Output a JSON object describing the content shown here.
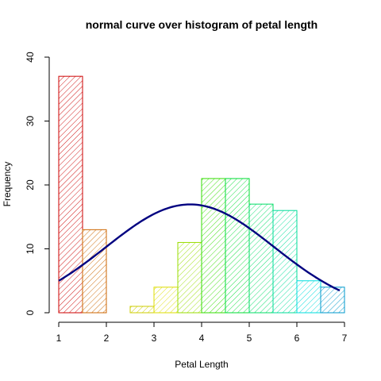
{
  "chart_data": {
    "type": "bar",
    "title": "normal curve over histogram of petal length",
    "xlabel": "Petal Length",
    "ylabel": "Frequency",
    "xlim": [
      1,
      7
    ],
    "ylim": [
      0,
      40
    ],
    "x_ticks": [
      1,
      2,
      3,
      4,
      5,
      6,
      7
    ],
    "y_ticks": [
      0,
      10,
      20,
      30,
      40
    ],
    "bins": [
      {
        "start": 1.0,
        "end": 1.5,
        "count": 37,
        "color": "#cc0000"
      },
      {
        "start": 1.5,
        "end": 2.0,
        "count": 13,
        "color": "#cc6600"
      },
      {
        "start": 2.0,
        "end": 2.5,
        "count": 0,
        "color": "#cc9900"
      },
      {
        "start": 2.5,
        "end": 3.0,
        "count": 1,
        "color": "#cccc00"
      },
      {
        "start": 3.0,
        "end": 3.5,
        "count": 4,
        "color": "#dddd00"
      },
      {
        "start": 3.5,
        "end": 4.0,
        "count": 11,
        "color": "#99dd00"
      },
      {
        "start": 4.0,
        "end": 4.5,
        "count": 21,
        "color": "#33dd00"
      },
      {
        "start": 4.5,
        "end": 5.0,
        "count": 21,
        "color": "#00dd33"
      },
      {
        "start": 5.0,
        "end": 5.5,
        "count": 17,
        "color": "#00dd66"
      },
      {
        "start": 5.5,
        "end": 6.0,
        "count": 16,
        "color": "#00dd99"
      },
      {
        "start": 6.0,
        "end": 6.5,
        "count": 5,
        "color": "#00dddd"
      },
      {
        "start": 6.5,
        "end": 7.0,
        "count": 4,
        "color": "#0099cc"
      }
    ],
    "curve": {
      "type": "normal",
      "mean": 3.758,
      "sd": 1.765,
      "n": 150,
      "binwidth": 0.5,
      "x_from": 1.0,
      "x_to": 6.9,
      "color": "#000080"
    }
  }
}
